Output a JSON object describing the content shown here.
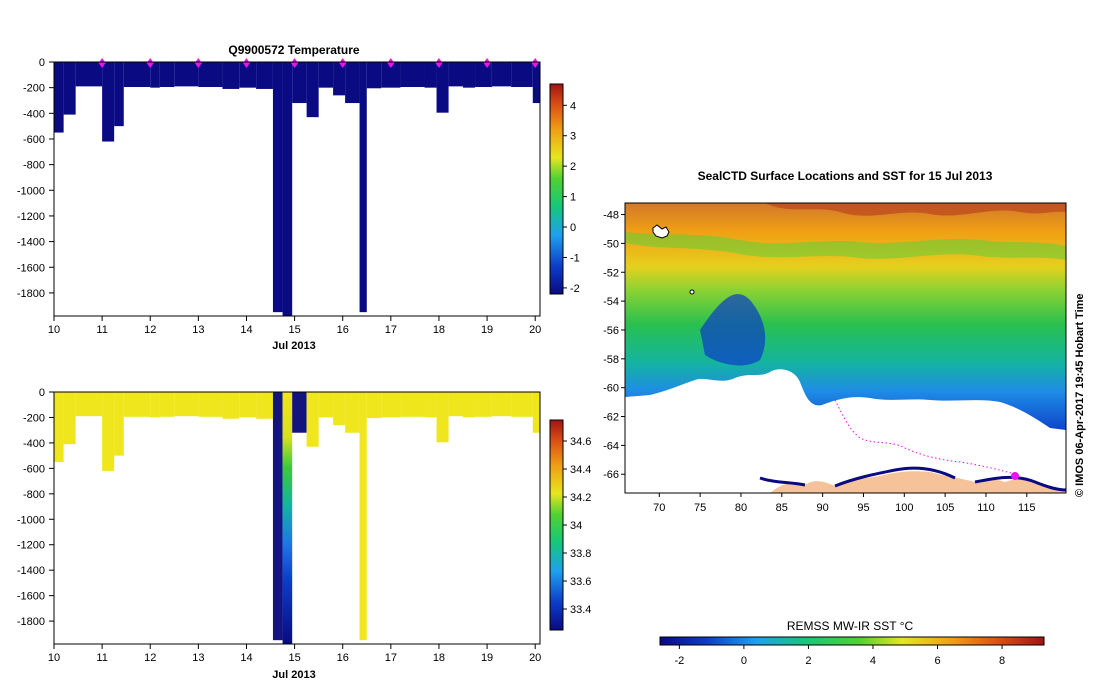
{
  "chart_data": [
    {
      "type": "heatmap",
      "title": "Q9900572  Temperature",
      "xlabel": "Jul 2013",
      "x_ticks": [
        "10",
        "11",
        "12",
        "13",
        "14",
        "15",
        "16",
        "17",
        "18",
        "19",
        "20"
      ],
      "y_ticks": [
        "0",
        "-200",
        "-400",
        "-600",
        "-800",
        "-1000",
        "-1200",
        "-1400",
        "-1600",
        "-1800"
      ],
      "xlim": [
        10,
        20.1
      ],
      "ylim": [
        -1980,
        0
      ],
      "colorbar": {
        "min": -2.2,
        "max": 4.7,
        "ticks": [
          "4",
          "3",
          "2",
          "1",
          "0",
          "-1",
          "-2"
        ]
      },
      "value_color": "#0a0a82",
      "surface_marker_color": "#ee10ee",
      "surface_days": [
        11,
        12,
        13,
        14,
        15,
        16,
        17,
        18,
        19,
        20
      ],
      "profiles": [
        {
          "x0": 10.0,
          "x1": 10.2,
          "depth": -550
        },
        {
          "x0": 10.2,
          "x1": 10.45,
          "depth": -410
        },
        {
          "x0": 10.45,
          "x1": 11.0,
          "depth": -190
        },
        {
          "x0": 11.0,
          "x1": 11.25,
          "depth": -620
        },
        {
          "x0": 11.25,
          "x1": 11.45,
          "depth": -500
        },
        {
          "x0": 11.45,
          "x1": 12.0,
          "depth": -195
        },
        {
          "x0": 12.0,
          "x1": 12.2,
          "depth": -200
        },
        {
          "x0": 12.2,
          "x1": 12.5,
          "depth": -195
        },
        {
          "x0": 12.5,
          "x1": 13.0,
          "depth": -190
        },
        {
          "x0": 13.0,
          "x1": 13.5,
          "depth": -195
        },
        {
          "x0": 13.5,
          "x1": 13.85,
          "depth": -210
        },
        {
          "x0": 13.85,
          "x1": 14.2,
          "depth": -200
        },
        {
          "x0": 14.2,
          "x1": 14.55,
          "depth": -210
        },
        {
          "x0": 14.55,
          "x1": 14.75,
          "depth": -1950
        },
        {
          "x0": 14.75,
          "x1": 14.95,
          "depth": -1980
        },
        {
          "x0": 14.95,
          "x1": 15.25,
          "depth": -320
        },
        {
          "x0": 15.25,
          "x1": 15.5,
          "depth": -430
        },
        {
          "x0": 15.5,
          "x1": 15.8,
          "depth": -200
        },
        {
          "x0": 15.8,
          "x1": 16.05,
          "depth": -260
        },
        {
          "x0": 16.05,
          "x1": 16.35,
          "depth": -320
        },
        {
          "x0": 16.35,
          "x1": 16.5,
          "depth": -1950
        },
        {
          "x0": 16.5,
          "x1": 16.8,
          "depth": -205
        },
        {
          "x0": 16.8,
          "x1": 17.2,
          "depth": -200
        },
        {
          "x0": 17.2,
          "x1": 17.7,
          "depth": -195
        },
        {
          "x0": 17.7,
          "x1": 17.95,
          "depth": -200
        },
        {
          "x0": 17.95,
          "x1": 18.2,
          "depth": -395
        },
        {
          "x0": 18.2,
          "x1": 18.5,
          "depth": -190
        },
        {
          "x0": 18.5,
          "x1": 18.75,
          "depth": -200
        },
        {
          "x0": 18.75,
          "x1": 19.1,
          "depth": -195
        },
        {
          "x0": 19.1,
          "x1": 19.5,
          "depth": -190
        },
        {
          "x0": 19.5,
          "x1": 19.95,
          "depth": -195
        },
        {
          "x0": 19.95,
          "x1": 20.1,
          "depth": -320
        }
      ]
    },
    {
      "type": "heatmap",
      "title": "",
      "xlabel": "Jul 2013",
      "x_ticks": [
        "10",
        "11",
        "12",
        "13",
        "14",
        "15",
        "16",
        "17",
        "18",
        "19",
        "20"
      ],
      "y_ticks": [
        "0",
        "-200",
        "-400",
        "-600",
        "-800",
        "-1000",
        "-1200",
        "-1400",
        "-1600",
        "-1800"
      ],
      "xlim": [
        10,
        20.1
      ],
      "ylim": [
        -1980,
        0
      ],
      "colorbar": {
        "min": 33.25,
        "max": 34.75,
        "ticks": [
          "34.6",
          "34.4",
          "34.2",
          "34",
          "33.8",
          "33.6",
          "33.4"
        ]
      },
      "value_color": "#f0e61e",
      "profiles": [
        {
          "x0": 10.0,
          "x1": 10.2,
          "depth": -550
        },
        {
          "x0": 10.2,
          "x1": 10.45,
          "depth": -410
        },
        {
          "x0": 10.45,
          "x1": 11.0,
          "depth": -190
        },
        {
          "x0": 11.0,
          "x1": 11.25,
          "depth": -620
        },
        {
          "x0": 11.25,
          "x1": 11.45,
          "depth": -500
        },
        {
          "x0": 11.45,
          "x1": 12.0,
          "depth": -195
        },
        {
          "x0": 12.0,
          "x1": 12.2,
          "depth": -200
        },
        {
          "x0": 12.2,
          "x1": 12.5,
          "depth": -195
        },
        {
          "x0": 12.5,
          "x1": 13.0,
          "depth": -190
        },
        {
          "x0": 13.0,
          "x1": 13.5,
          "depth": -195
        },
        {
          "x0": 13.5,
          "x1": 13.85,
          "depth": -210
        },
        {
          "x0": 13.85,
          "x1": 14.2,
          "depth": -200
        },
        {
          "x0": 14.2,
          "x1": 14.55,
          "depth": -210
        },
        {
          "x0": 14.55,
          "x1": 14.75,
          "depth": -1950,
          "color": "#14147e"
        },
        {
          "x0": 14.75,
          "x1": 14.95,
          "depth": -1980,
          "gradient": true
        },
        {
          "x0": 14.95,
          "x1": 15.25,
          "depth": -320,
          "color": "#14147e"
        },
        {
          "x0": 15.25,
          "x1": 15.5,
          "depth": -430
        },
        {
          "x0": 15.5,
          "x1": 15.8,
          "depth": -200
        },
        {
          "x0": 15.8,
          "x1": 16.05,
          "depth": -260
        },
        {
          "x0": 16.05,
          "x1": 16.35,
          "depth": -320
        },
        {
          "x0": 16.35,
          "x1": 16.5,
          "depth": -1950
        },
        {
          "x0": 16.5,
          "x1": 16.8,
          "depth": -205
        },
        {
          "x0": 16.8,
          "x1": 17.2,
          "depth": -200
        },
        {
          "x0": 17.2,
          "x1": 17.7,
          "depth": -195
        },
        {
          "x0": 17.7,
          "x1": 17.95,
          "depth": -200
        },
        {
          "x0": 17.95,
          "x1": 18.2,
          "depth": -395
        },
        {
          "x0": 18.2,
          "x1": 18.5,
          "depth": -190
        },
        {
          "x0": 18.5,
          "x1": 18.75,
          "depth": -200
        },
        {
          "x0": 18.75,
          "x1": 19.1,
          "depth": -195
        },
        {
          "x0": 19.1,
          "x1": 19.5,
          "depth": -190
        },
        {
          "x0": 19.5,
          "x1": 19.95,
          "depth": -195
        },
        {
          "x0": 19.95,
          "x1": 20.1,
          "depth": -320
        }
      ]
    },
    {
      "type": "heatmap",
      "title": "SealCTD Surface Locations and SST for 15 Jul 2013",
      "xlabel": "",
      "x_ticks": [
        "70",
        "75",
        "80",
        "85",
        "90",
        "95",
        "100",
        "105",
        "110",
        "115"
      ],
      "y_ticks": [
        "-48",
        "-50",
        "-52",
        "-54",
        "-56",
        "-58",
        "-60",
        "-62",
        "-64",
        "-66"
      ],
      "xlim": [
        65.8,
        119.8
      ],
      "ylim": [
        -67.3,
        -47.2
      ],
      "colorbar_label": "REMSS MW-IR SST °C",
      "colorbar": {
        "min": -2.6,
        "max": 9.3,
        "ticks": [
          "-2",
          "0",
          "2",
          "4",
          "6",
          "8"
        ]
      },
      "credit": "© IMOS 06-Apr-2017 19:45 Hobart Time",
      "track_color": "#ee10ee",
      "land_color": "#f5c29a"
    }
  ]
}
